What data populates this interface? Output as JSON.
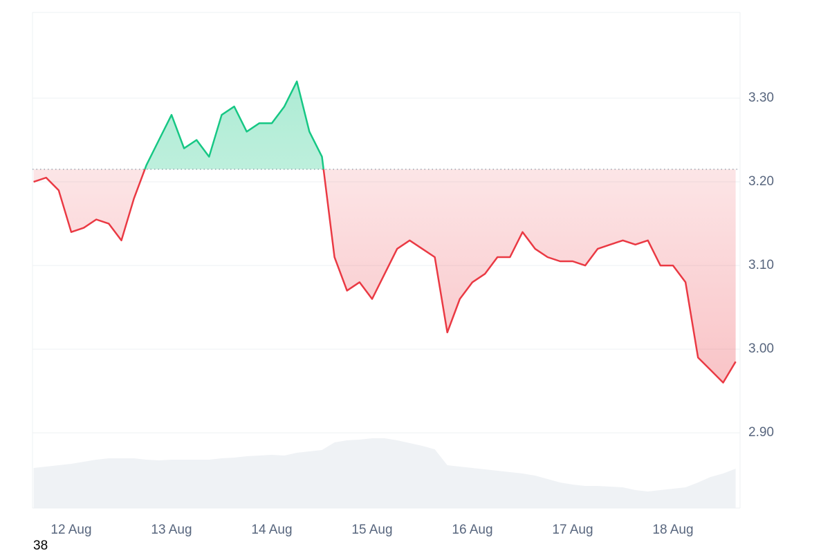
{
  "chart_data": {
    "type": "line",
    "categories": [
      null,
      null,
      null,
      "12 Aug",
      null,
      null,
      null,
      null,
      null,
      null,
      null,
      "13 Aug",
      null,
      null,
      null,
      null,
      null,
      null,
      null,
      "14 Aug",
      null,
      null,
      null,
      null,
      null,
      null,
      null,
      "15 Aug",
      null,
      null,
      null,
      null,
      null,
      null,
      null,
      "16 Aug",
      null,
      null,
      null,
      null,
      null,
      null,
      null,
      "17 Aug",
      null,
      null,
      null,
      null,
      null,
      null,
      null,
      "18 Aug",
      null,
      null,
      null,
      null,
      null
    ],
    "values": [
      3.2,
      3.205,
      3.19,
      3.14,
      3.145,
      3.155,
      3.15,
      3.13,
      3.18,
      3.22,
      3.25,
      3.28,
      3.24,
      3.25,
      3.23,
      3.28,
      3.29,
      3.26,
      3.27,
      3.27,
      3.29,
      3.32,
      3.26,
      3.23,
      3.11,
      3.07,
      3.08,
      3.06,
      3.09,
      3.12,
      3.13,
      3.12,
      3.11,
      3.02,
      3.06,
      3.08,
      3.09,
      3.11,
      3.11,
      3.14,
      3.12,
      3.11,
      3.105,
      3.105,
      3.1,
      3.12,
      3.125,
      3.13,
      3.125,
      3.13,
      3.1,
      3.1,
      3.08,
      2.99,
      2.975,
      2.96,
      2.985
    ],
    "baseline": 3.215,
    "up_color": "#16c784",
    "down_color": "#ea3943",
    "ylim": [
      2.81,
      3.4025
    ],
    "yticks": [
      {
        "value": 2.9,
        "label": "2.90"
      },
      {
        "value": 3.0,
        "label": "3.00"
      },
      {
        "value": 3.1,
        "label": "3.10"
      },
      {
        "value": 3.2,
        "label": "3.20"
      },
      {
        "value": 3.3,
        "label": "3.30"
      }
    ],
    "grid": true,
    "volume": {
      "color": "#eff2f5",
      "values": [
        58,
        60,
        62,
        64,
        67,
        70,
        72,
        72,
        72,
        70,
        69,
        70,
        70,
        70,
        70,
        72,
        73,
        75,
        76,
        77,
        76,
        80,
        82,
        84,
        95,
        98,
        99,
        101,
        101,
        98,
        94,
        90,
        85,
        62,
        60,
        58,
        56,
        54,
        52,
        50,
        47,
        42,
        37,
        34,
        32,
        32,
        31,
        30,
        26,
        24,
        26,
        28,
        30,
        37,
        45,
        50,
        57
      ]
    },
    "y2lim": [
      0,
      717
    ]
  },
  "corner_label": "38"
}
